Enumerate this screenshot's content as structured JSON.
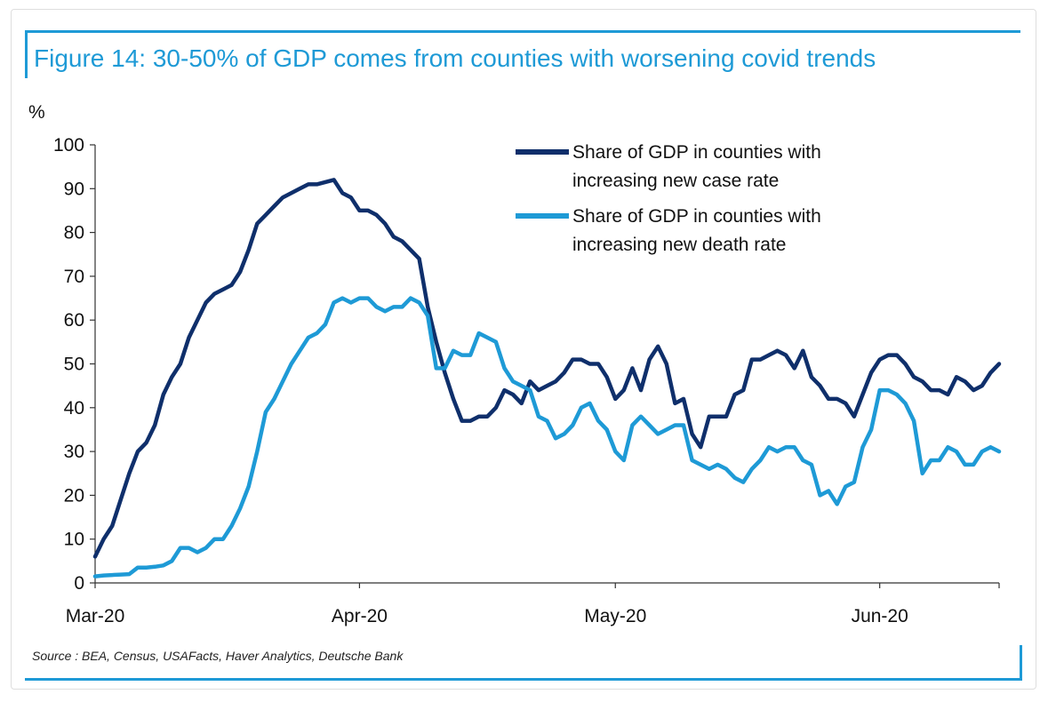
{
  "title": "Figure 14: 30-50% of GDP comes from counties with worsening covid trends",
  "source": "Source : BEA, Census, USAFacts, Haver Analytics, Deutsche Bank",
  "colors": {
    "accent": "#1e9ad6",
    "series_dark": "#0f2f6b",
    "series_light": "#1e9ad6"
  },
  "chart_data": {
    "type": "line",
    "title": "Figure 14: 30-50% of GDP comes from counties with worsening covid trends",
    "xlabel": "",
    "ylabel": "%",
    "ylim": [
      0,
      100
    ],
    "yticks": [
      0,
      10,
      20,
      30,
      40,
      50,
      60,
      70,
      80,
      90,
      100
    ],
    "xlim": [
      "2020-03-01",
      "2020-06-15"
    ],
    "xticks": [
      "Mar-20",
      "Apr-20",
      "May-20",
      "Jun-20"
    ],
    "grid": false,
    "legend_position": "top-right",
    "series": [
      {
        "name": "Share of GDP in counties with increasing new case rate",
        "color": "#0f2f6b",
        "x": [
          "2020-03-01",
          "2020-03-02",
          "2020-03-03",
          "2020-03-04",
          "2020-03-05",
          "2020-03-06",
          "2020-03-07",
          "2020-03-08",
          "2020-03-09",
          "2020-03-10",
          "2020-03-11",
          "2020-03-12",
          "2020-03-13",
          "2020-03-14",
          "2020-03-15",
          "2020-03-16",
          "2020-03-17",
          "2020-03-18",
          "2020-03-19",
          "2020-03-20",
          "2020-03-21",
          "2020-03-22",
          "2020-03-23",
          "2020-03-24",
          "2020-03-25",
          "2020-03-26",
          "2020-03-27",
          "2020-03-28",
          "2020-03-29",
          "2020-03-30",
          "2020-03-31",
          "2020-04-01",
          "2020-04-02",
          "2020-04-03",
          "2020-04-04",
          "2020-04-05",
          "2020-04-06",
          "2020-04-07",
          "2020-04-08",
          "2020-04-09",
          "2020-04-10",
          "2020-04-11",
          "2020-04-12",
          "2020-04-13",
          "2020-04-14",
          "2020-04-15",
          "2020-04-16",
          "2020-04-17",
          "2020-04-18",
          "2020-04-19",
          "2020-04-20",
          "2020-04-21",
          "2020-04-22",
          "2020-04-23",
          "2020-04-24",
          "2020-04-25",
          "2020-04-26",
          "2020-04-27",
          "2020-04-28",
          "2020-04-29",
          "2020-04-30",
          "2020-05-01",
          "2020-05-02",
          "2020-05-03",
          "2020-05-04",
          "2020-05-05",
          "2020-05-06",
          "2020-05-07",
          "2020-05-08",
          "2020-05-09",
          "2020-05-10",
          "2020-05-11",
          "2020-05-12",
          "2020-05-13",
          "2020-05-14",
          "2020-05-15",
          "2020-05-16",
          "2020-05-17",
          "2020-05-18",
          "2020-05-19",
          "2020-05-20",
          "2020-05-21",
          "2020-05-22",
          "2020-05-23",
          "2020-05-24",
          "2020-05-25",
          "2020-05-26",
          "2020-05-27",
          "2020-05-28",
          "2020-05-29",
          "2020-05-30",
          "2020-05-31",
          "2020-06-01",
          "2020-06-02",
          "2020-06-03",
          "2020-06-04",
          "2020-06-05",
          "2020-06-06",
          "2020-06-07",
          "2020-06-08",
          "2020-06-09",
          "2020-06-10",
          "2020-06-11",
          "2020-06-12",
          "2020-06-13",
          "2020-06-14",
          "2020-06-15"
        ],
        "values": [
          6,
          10,
          13,
          19,
          25,
          30,
          32,
          36,
          43,
          47,
          50,
          56,
          60,
          64,
          66,
          67,
          68,
          71,
          76,
          82,
          84,
          86,
          88,
          89,
          90,
          91,
          91,
          91.5,
          92,
          89,
          88,
          85,
          85,
          84,
          82,
          79,
          78,
          76,
          74,
          63,
          55,
          48,
          42,
          37,
          37,
          38,
          38,
          40,
          44,
          43,
          41,
          46,
          44,
          45,
          46,
          48,
          51,
          51,
          50,
          50,
          47,
          42,
          44,
          49,
          44,
          51,
          54,
          50,
          41,
          42,
          34,
          31,
          38,
          38,
          38,
          43,
          44,
          51,
          51,
          52,
          53,
          52,
          49,
          53,
          47,
          45,
          42,
          42,
          41,
          38,
          43,
          48,
          51,
          52,
          52,
          50,
          47,
          46,
          44,
          44,
          43,
          47,
          46,
          44,
          45,
          48,
          50
        ]
      },
      {
        "name": "Share of GDP in counties with increasing new death rate",
        "color": "#1e9ad6",
        "x": [
          "2020-03-01",
          "2020-03-02",
          "2020-03-03",
          "2020-03-04",
          "2020-03-05",
          "2020-03-06",
          "2020-03-07",
          "2020-03-08",
          "2020-03-09",
          "2020-03-10",
          "2020-03-11",
          "2020-03-12",
          "2020-03-13",
          "2020-03-14",
          "2020-03-15",
          "2020-03-16",
          "2020-03-17",
          "2020-03-18",
          "2020-03-19",
          "2020-03-20",
          "2020-03-21",
          "2020-03-22",
          "2020-03-23",
          "2020-03-24",
          "2020-03-25",
          "2020-03-26",
          "2020-03-27",
          "2020-03-28",
          "2020-03-29",
          "2020-03-30",
          "2020-03-31",
          "2020-04-01",
          "2020-04-02",
          "2020-04-03",
          "2020-04-04",
          "2020-04-05",
          "2020-04-06",
          "2020-04-07",
          "2020-04-08",
          "2020-04-09",
          "2020-04-10",
          "2020-04-11",
          "2020-04-12",
          "2020-04-13",
          "2020-04-14",
          "2020-04-15",
          "2020-04-16",
          "2020-04-17",
          "2020-04-18",
          "2020-04-19",
          "2020-04-20",
          "2020-04-21",
          "2020-04-22",
          "2020-04-23",
          "2020-04-24",
          "2020-04-25",
          "2020-04-26",
          "2020-04-27",
          "2020-04-28",
          "2020-04-29",
          "2020-04-30",
          "2020-05-01",
          "2020-05-02",
          "2020-05-03",
          "2020-05-04",
          "2020-05-05",
          "2020-05-06",
          "2020-05-07",
          "2020-05-08",
          "2020-05-09",
          "2020-05-10",
          "2020-05-11",
          "2020-05-12",
          "2020-05-13",
          "2020-05-14",
          "2020-05-15",
          "2020-05-16",
          "2020-05-17",
          "2020-05-18",
          "2020-05-19",
          "2020-05-20",
          "2020-05-21",
          "2020-05-22",
          "2020-05-23",
          "2020-05-24",
          "2020-05-25",
          "2020-05-26",
          "2020-05-27",
          "2020-05-28",
          "2020-05-29",
          "2020-05-30",
          "2020-05-31",
          "2020-06-01",
          "2020-06-02",
          "2020-06-03",
          "2020-06-04",
          "2020-06-05",
          "2020-06-06",
          "2020-06-07",
          "2020-06-08",
          "2020-06-09",
          "2020-06-10",
          "2020-06-11",
          "2020-06-12",
          "2020-06-13",
          "2020-06-14",
          "2020-06-15"
        ],
        "values": [
          1.5,
          1.7,
          1.8,
          1.9,
          2,
          3.5,
          3.5,
          3.7,
          4,
          5,
          8,
          8,
          7,
          8,
          10,
          10,
          13,
          17,
          22,
          30,
          39,
          42,
          46,
          50,
          53,
          56,
          57,
          59,
          64,
          65,
          64,
          65,
          65,
          63,
          62,
          63,
          63,
          65,
          64,
          61,
          49,
          49,
          53,
          52,
          52,
          57,
          56,
          55,
          49,
          46,
          45,
          44,
          38,
          37,
          33,
          34,
          36,
          40,
          41,
          37,
          35,
          30,
          28,
          36,
          38,
          36,
          34,
          35,
          36,
          36,
          28,
          27,
          26,
          27,
          26,
          24,
          23,
          26,
          28,
          31,
          30,
          31,
          31,
          28,
          27,
          20,
          21,
          18,
          22,
          23,
          31,
          35,
          44,
          44,
          43,
          41,
          37,
          25,
          28,
          28,
          31,
          30,
          27,
          27,
          30,
          31,
          30
        ]
      }
    ]
  }
}
